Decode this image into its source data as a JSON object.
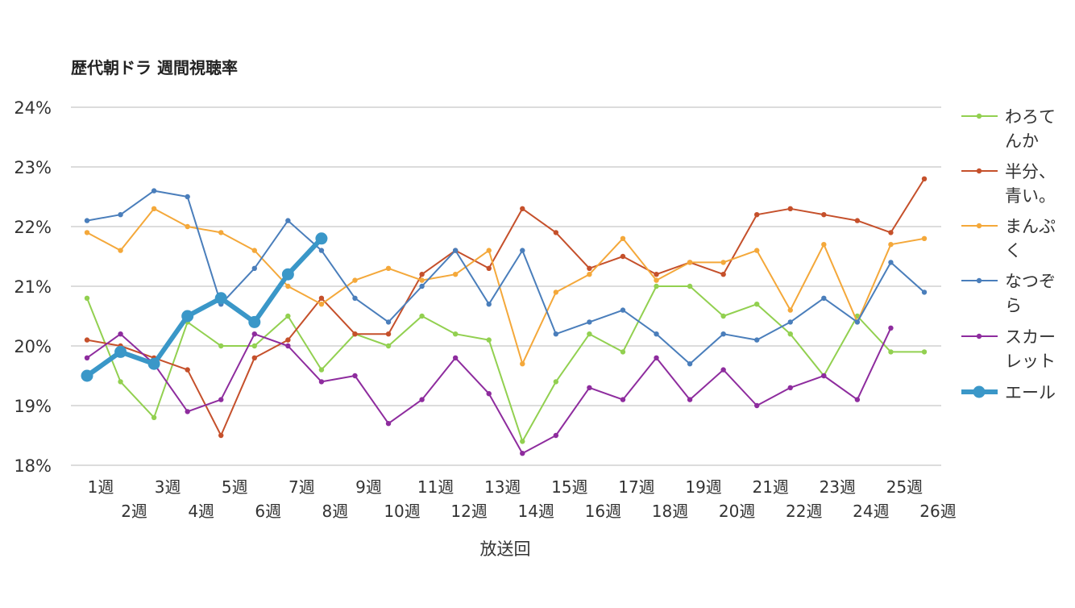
{
  "chart_data": {
    "type": "line",
    "title": "歴代朝ドラ 週間視聴率",
    "xlabel": "放送回",
    "ylabel": "",
    "ylim": [
      18,
      24
    ],
    "yticks": [
      "18%",
      "19%",
      "20%",
      "21%",
      "22%",
      "23%",
      "24%"
    ],
    "grid": true,
    "legend_position": "right",
    "categories": [
      "1週",
      "2週",
      "3週",
      "4週",
      "5週",
      "6週",
      "7週",
      "8週",
      "9週",
      "10週",
      "11週",
      "12週",
      "13週",
      "14週",
      "15週",
      "16週",
      "17週",
      "18週",
      "19週",
      "20週",
      "21週",
      "22週",
      "23週",
      "24週",
      "25週",
      "26週"
    ],
    "series": [
      {
        "name": "わろてんか",
        "legend_lines": [
          "わろて",
          "んか"
        ],
        "color": "#92d050",
        "values": [
          20.8,
          19.4,
          18.8,
          20.4,
          20.0,
          20.0,
          20.5,
          19.6,
          20.2,
          20.0,
          20.5,
          20.2,
          20.1,
          18.4,
          19.4,
          20.2,
          19.9,
          21.0,
          21.0,
          20.5,
          20.7,
          20.2,
          19.5,
          20.5,
          19.9,
          19.9
        ]
      },
      {
        "name": "半分、青い。",
        "legend_lines": [
          "半分、",
          "青い。"
        ],
        "color": "#c5502b",
        "values": [
          20.1,
          20.0,
          19.8,
          19.6,
          18.5,
          19.8,
          20.1,
          20.8,
          20.2,
          20.2,
          21.2,
          21.6,
          21.3,
          22.3,
          21.9,
          21.3,
          21.5,
          21.2,
          21.4,
          21.2,
          22.2,
          22.3,
          22.2,
          22.1,
          21.9,
          22.8
        ]
      },
      {
        "name": "まんぷく",
        "legend_lines": [
          "まんぷ",
          "く"
        ],
        "color": "#f4a83a",
        "values": [
          21.9,
          21.6,
          22.3,
          22.0,
          21.9,
          21.6,
          21.0,
          20.7,
          21.1,
          21.3,
          21.1,
          21.2,
          21.6,
          19.7,
          20.9,
          21.2,
          21.8,
          21.1,
          21.4,
          21.4,
          21.6,
          20.6,
          21.7,
          20.4,
          21.7,
          21.8
        ]
      },
      {
        "name": "なつぞら",
        "legend_lines": [
          "なつぞ",
          "ら"
        ],
        "color": "#4a7ebb",
        "values": [
          22.1,
          22.2,
          22.6,
          22.5,
          20.7,
          21.3,
          22.1,
          21.6,
          20.8,
          20.4,
          21.0,
          21.6,
          20.7,
          21.6,
          20.2,
          20.4,
          20.6,
          20.2,
          19.7,
          20.2,
          20.1,
          20.4,
          20.8,
          20.4,
          21.4,
          20.9
        ]
      },
      {
        "name": "スカーレット",
        "legend_lines": [
          "スカー",
          "レット"
        ],
        "color": "#8e2c9e",
        "values": [
          19.8,
          20.2,
          19.7,
          18.9,
          19.1,
          20.2,
          20.0,
          19.4,
          19.5,
          18.7,
          19.1,
          19.8,
          19.2,
          18.2,
          18.5,
          19.3,
          19.1,
          19.8,
          19.1,
          19.6,
          19.0,
          19.3,
          19.5,
          19.1,
          20.3,
          null
        ]
      },
      {
        "name": "エール",
        "legend_lines": [
          "エール"
        ],
        "color": "#3a97c8",
        "bold": true,
        "values": [
          19.5,
          19.9,
          19.7,
          20.5,
          20.8,
          20.4,
          21.2,
          21.8,
          null,
          null,
          null,
          null,
          null,
          null,
          null,
          null,
          null,
          null,
          null,
          null,
          null,
          null,
          null,
          null,
          null,
          null
        ]
      }
    ]
  }
}
